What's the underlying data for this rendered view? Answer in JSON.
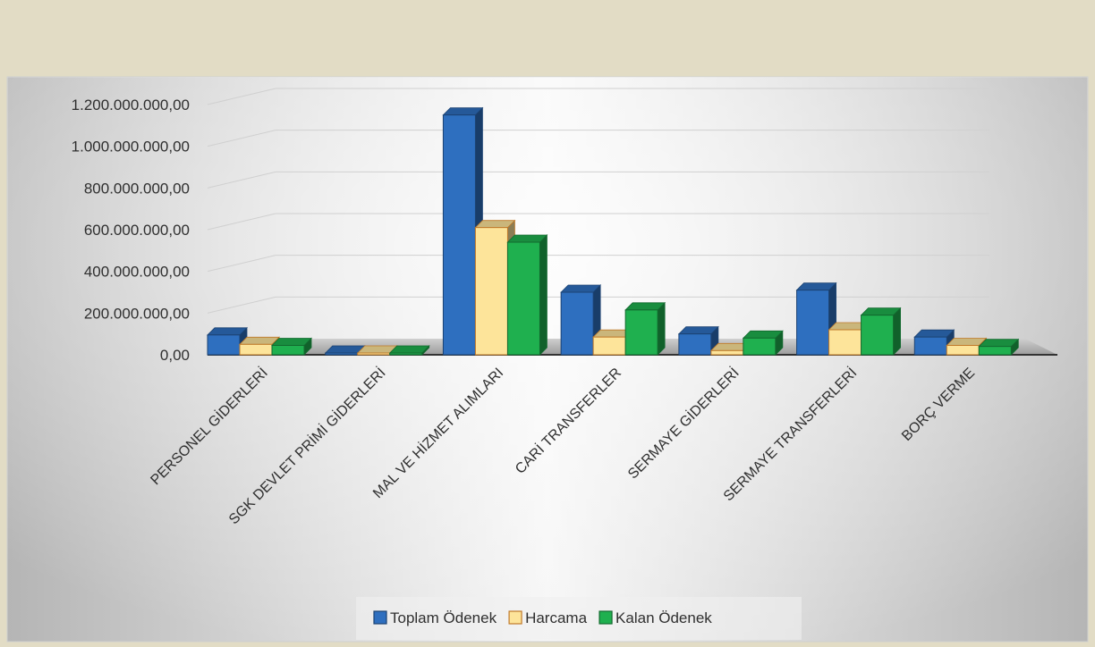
{
  "chart_data": {
    "type": "bar",
    "title": "",
    "xlabel": "",
    "ylabel": "",
    "categories": [
      "PERSONEL GİDERLERİ",
      "SGK DEVLET PRİMİ GİDERLERİ",
      "MAL VE HİZMET ALIMLARI",
      "CARİ TRANSFERLER",
      "SERMAYE GİDERLERİ",
      "SERMAYE TRANSFERLERİ",
      "BORÇ VERME"
    ],
    "series": [
      {
        "name": "Toplam Ödenek",
        "values": [
          95000000,
          5000000,
          1150000000,
          300000000,
          100000000,
          310000000,
          85000000
        ]
      },
      {
        "name": "Harcama",
        "values": [
          50000000,
          3000000,
          610000000,
          85000000,
          20000000,
          120000000,
          45000000
        ]
      },
      {
        "name": "Kalan Ödenek",
        "values": [
          45000000,
          2000000,
          540000000,
          215000000,
          80000000,
          190000000,
          40000000
        ]
      }
    ],
    "ylim": [
      0,
      1200000000
    ],
    "y_ticks": [
      "0,00",
      "200.000.000,00",
      "400.000.000,00",
      "600.000.000,00",
      "800.000.000,00",
      "1.000.000.000,00",
      "1.200.000.000,00"
    ],
    "grid": true,
    "legend_position": "bottom",
    "colors": {
      "Toplam Ödenek": "#2e6fbf",
      "Harcama": "#fde49a",
      "Kalan Ödenek": "#1fb04f",
      "header_band": "#e2dcc5"
    }
  }
}
